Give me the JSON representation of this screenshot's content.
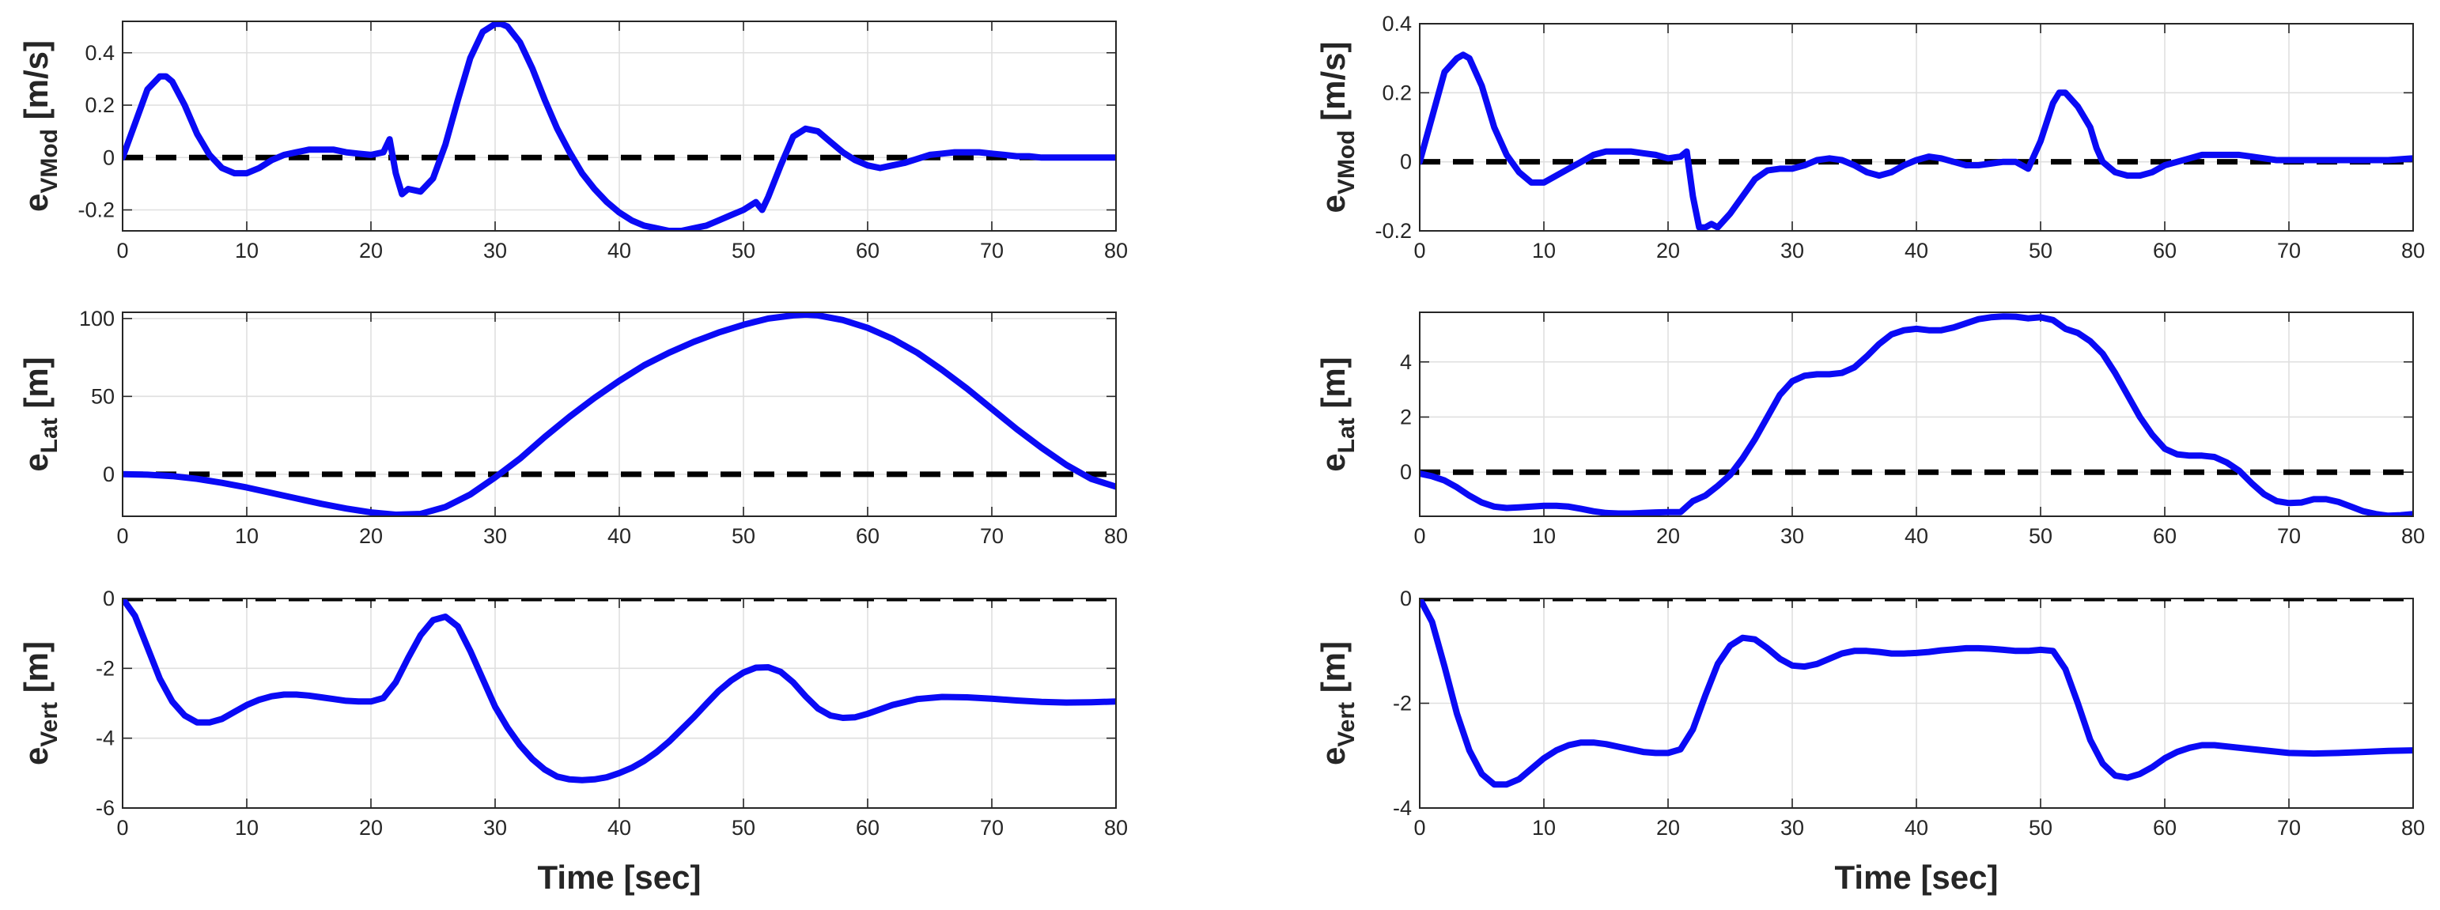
{
  "colors": {
    "series": "#0a0af5",
    "reference": "#000000",
    "grid": "#dfdfdf",
    "axis": "#262626"
  },
  "chart_data": [
    {
      "type": "line",
      "ylabel": {
        "base": "e",
        "sub": "VMod",
        "unit": "[m/s]"
      },
      "xlabel": "",
      "xlim": [
        0,
        80
      ],
      "ylim": [
        -0.28,
        0.52
      ],
      "xticks": [
        0,
        10,
        20,
        30,
        40,
        50,
        60,
        70,
        80
      ],
      "yticks": [
        -0.2,
        0,
        0.2,
        0.4
      ],
      "ytick_labels": [
        "-0.2",
        "0",
        "0.2",
        "0.4"
      ],
      "grid": true,
      "reference": 0,
      "series": [
        {
          "x": [
            0,
            1,
            2,
            3,
            3.5,
            4,
            5,
            6,
            7,
            8,
            9,
            10,
            11,
            12,
            13,
            14,
            15,
            16,
            17,
            18,
            19,
            20,
            21,
            21.5,
            22,
            22.5,
            23,
            24,
            25,
            26,
            27,
            28,
            29,
            30,
            30.5,
            31,
            32,
            33,
            34,
            35,
            36,
            37,
            38,
            39,
            40,
            41,
            42,
            43,
            44,
            45,
            46,
            47,
            48,
            49,
            50,
            51,
            51.5,
            52,
            53,
            54,
            55,
            56,
            57,
            58,
            59,
            60,
            61,
            62,
            63,
            64,
            65,
            66,
            67,
            68,
            69,
            70,
            71,
            72,
            73,
            74,
            75,
            76,
            77,
            78,
            79,
            80
          ],
          "y": [
            0,
            0.13,
            0.26,
            0.31,
            0.31,
            0.29,
            0.2,
            0.09,
            0.01,
            -0.04,
            -0.06,
            -0.06,
            -0.04,
            -0.01,
            0.01,
            0.02,
            0.03,
            0.03,
            0.03,
            0.02,
            0.015,
            0.01,
            0.02,
            0.07,
            -0.06,
            -0.14,
            -0.12,
            -0.13,
            -0.08,
            0.05,
            0.22,
            0.38,
            0.48,
            0.51,
            0.51,
            0.5,
            0.44,
            0.34,
            0.22,
            0.11,
            0.02,
            -0.06,
            -0.12,
            -0.17,
            -0.21,
            -0.24,
            -0.26,
            -0.27,
            -0.28,
            -0.28,
            -0.27,
            -0.26,
            -0.24,
            -0.22,
            -0.2,
            -0.17,
            -0.2,
            -0.15,
            -0.03,
            0.08,
            0.11,
            0.1,
            0.06,
            0.02,
            -0.01,
            -0.03,
            -0.04,
            -0.03,
            -0.02,
            -0.005,
            0.01,
            0.015,
            0.02,
            0.02,
            0.02,
            0.015,
            0.01,
            0.005,
            0.005,
            0,
            0,
            0,
            0,
            0,
            0,
            0
          ]
        }
      ]
    },
    {
      "type": "line",
      "ylabel": {
        "base": "e",
        "sub": "Lat",
        "unit": "[m]"
      },
      "xlabel": "",
      "xlim": [
        0,
        80
      ],
      "ylim": [
        -27,
        104
      ],
      "xticks": [
        0,
        10,
        20,
        30,
        40,
        50,
        60,
        70,
        80
      ],
      "yticks": [
        0,
        50,
        100
      ],
      "ytick_labels": [
        "0",
        "50",
        "100"
      ],
      "grid": true,
      "reference": 0,
      "series": [
        {
          "x": [
            0,
            2,
            4,
            6,
            8,
            10,
            12,
            14,
            16,
            18,
            20,
            22,
            24,
            26,
            28,
            30,
            32,
            34,
            36,
            38,
            40,
            42,
            44,
            46,
            48,
            50,
            52,
            54,
            55,
            56,
            58,
            60,
            62,
            64,
            66,
            68,
            70,
            72,
            74,
            76,
            78,
            80
          ],
          "y": [
            0,
            -0.3,
            -1.2,
            -3,
            -5.5,
            -8.5,
            -12,
            -15.5,
            -19,
            -22,
            -24.5,
            -26,
            -25.5,
            -21,
            -13,
            -2,
            10,
            24,
            37,
            49,
            60,
            70,
            78,
            85,
            91,
            96,
            100,
            102,
            102.5,
            102,
            99,
            94,
            87,
            78,
            67,
            55,
            42,
            29,
            17,
            6,
            -3,
            -8
          ]
        }
      ]
    },
    {
      "type": "line",
      "ylabel": {
        "base": "e",
        "sub": "Vert",
        "unit": "[m]"
      },
      "xlabel": "Time [sec]",
      "xlim": [
        0,
        80
      ],
      "ylim": [
        -6,
        0
      ],
      "xticks": [
        0,
        10,
        20,
        30,
        40,
        50,
        60,
        70,
        80
      ],
      "yticks": [
        -6,
        -4,
        -2,
        0
      ],
      "ytick_labels": [
        "-6",
        "-4",
        "-2",
        "0"
      ],
      "grid": true,
      "reference": 0,
      "series": [
        {
          "x": [
            0,
            1,
            2,
            3,
            4,
            5,
            6,
            7,
            8,
            9,
            10,
            11,
            12,
            13,
            14,
            15,
            16,
            17,
            18,
            19,
            20,
            21,
            22,
            23,
            24,
            25,
            26,
            27,
            28,
            29,
            30,
            31,
            32,
            33,
            34,
            35,
            36,
            37,
            38,
            39,
            40,
            41,
            42,
            43,
            44,
            45,
            46,
            47,
            48,
            49,
            50,
            51,
            52,
            53,
            54,
            55,
            56,
            57,
            58,
            59,
            60,
            62,
            64,
            66,
            68,
            70,
            72,
            74,
            76,
            78,
            80
          ],
          "y": [
            0,
            -0.5,
            -1.4,
            -2.3,
            -2.95,
            -3.35,
            -3.55,
            -3.55,
            -3.45,
            -3.25,
            -3.05,
            -2.9,
            -2.8,
            -2.75,
            -2.75,
            -2.78,
            -2.83,
            -2.88,
            -2.93,
            -2.95,
            -2.95,
            -2.85,
            -2.4,
            -1.7,
            -1.05,
            -0.62,
            -0.52,
            -0.8,
            -1.5,
            -2.3,
            -3.1,
            -3.7,
            -4.2,
            -4.6,
            -4.9,
            -5.1,
            -5.18,
            -5.2,
            -5.18,
            -5.12,
            -5,
            -4.85,
            -4.65,
            -4.4,
            -4.1,
            -3.75,
            -3.4,
            -3.02,
            -2.65,
            -2.35,
            -2.12,
            -1.98,
            -1.97,
            -2.1,
            -2.4,
            -2.8,
            -3.15,
            -3.35,
            -3.42,
            -3.4,
            -3.3,
            -3.05,
            -2.88,
            -2.82,
            -2.83,
            -2.87,
            -2.92,
            -2.96,
            -2.98,
            -2.97,
            -2.95
          ]
        }
      ]
    },
    {
      "type": "line",
      "ylabel": {
        "base": "e",
        "sub": "VMod",
        "unit": "[m/s]"
      },
      "xlabel": "",
      "xlim": [
        0,
        80
      ],
      "ylim": [
        -0.2,
        0.4
      ],
      "xticks": [
        0,
        10,
        20,
        30,
        40,
        50,
        60,
        70,
        80
      ],
      "yticks": [
        -0.2,
        0,
        0.2,
        0.4
      ],
      "ytick_labels": [
        "-0.2",
        "0",
        "0.2",
        "0.4"
      ],
      "grid": true,
      "reference": 0,
      "series": [
        {
          "x": [
            0,
            1,
            2,
            3,
            3.5,
            4,
            5,
            6,
            7,
            8,
            9,
            10,
            11,
            12,
            13,
            14,
            15,
            16,
            17,
            18,
            19,
            20,
            21,
            21.5,
            22,
            22.5,
            23,
            23.5,
            24,
            25,
            26,
            27,
            28,
            29,
            30,
            31,
            32,
            33,
            34,
            35,
            36,
            37,
            38,
            39,
            40,
            41,
            42,
            43,
            44,
            45,
            46,
            47,
            48,
            49,
            50,
            51,
            51.5,
            52,
            53,
            54,
            54.5,
            55,
            56,
            57,
            58,
            59,
            60,
            61,
            62,
            63,
            64,
            65,
            66,
            67,
            68,
            69,
            70,
            72,
            74,
            76,
            78,
            80
          ],
          "y": [
            0,
            0.13,
            0.26,
            0.3,
            0.31,
            0.3,
            0.22,
            0.1,
            0.02,
            -0.03,
            -0.06,
            -0.06,
            -0.04,
            -0.02,
            0,
            0.02,
            0.03,
            0.03,
            0.03,
            0.025,
            0.02,
            0.01,
            0.015,
            0.03,
            -0.1,
            -0.19,
            -0.19,
            -0.18,
            -0.19,
            -0.15,
            -0.1,
            -0.05,
            -0.025,
            -0.02,
            -0.02,
            -0.01,
            0.005,
            0.01,
            0.005,
            -0.01,
            -0.03,
            -0.04,
            -0.03,
            -0.01,
            0.005,
            0.015,
            0.01,
            0,
            -0.01,
            -0.01,
            -0.005,
            0,
            0,
            -0.02,
            0.06,
            0.17,
            0.2,
            0.2,
            0.16,
            0.1,
            0.04,
            0,
            -0.03,
            -0.04,
            -0.04,
            -0.03,
            -0.01,
            0,
            0.01,
            0.02,
            0.02,
            0.02,
            0.02,
            0.015,
            0.01,
            0.005,
            0.005,
            0.005,
            0.005,
            0.005,
            0.005,
            0.01
          ]
        }
      ]
    },
    {
      "type": "line",
      "ylabel": {
        "base": "e",
        "sub": "Lat",
        "unit": "[m]"
      },
      "xlabel": "",
      "xlim": [
        0,
        80
      ],
      "ylim": [
        -1.6,
        5.8
      ],
      "xticks": [
        0,
        10,
        20,
        30,
        40,
        50,
        60,
        70,
        80
      ],
      "yticks": [
        0,
        2,
        4
      ],
      "ytick_labels": [
        "0",
        "2",
        "4"
      ],
      "grid": true,
      "reference": 0,
      "series": [
        {
          "x": [
            0,
            1,
            2,
            3,
            4,
            5,
            6,
            7,
            8,
            9,
            10,
            11,
            12,
            13,
            14,
            15,
            16,
            17,
            18,
            19,
            20,
            21,
            22,
            23,
            24,
            25,
            26,
            27,
            28,
            29,
            30,
            31,
            32,
            33,
            34,
            35,
            36,
            37,
            38,
            39,
            40,
            41,
            42,
            43,
            44,
            45,
            46,
            47,
            48,
            49,
            50,
            51,
            52,
            53,
            54,
            55,
            56,
            57,
            58,
            59,
            60,
            61,
            62,
            63,
            64,
            65,
            66,
            67,
            68,
            69,
            70,
            71,
            72,
            73,
            74,
            75,
            76,
            77,
            78,
            79,
            80
          ],
          "y": [
            -0.05,
            -0.15,
            -0.3,
            -0.55,
            -0.85,
            -1.1,
            -1.25,
            -1.3,
            -1.28,
            -1.25,
            -1.22,
            -1.22,
            -1.25,
            -1.33,
            -1.42,
            -1.48,
            -1.5,
            -1.5,
            -1.48,
            -1.46,
            -1.45,
            -1.45,
            -1.05,
            -0.85,
            -0.5,
            -0.1,
            0.5,
            1.2,
            2,
            2.8,
            3.3,
            3.5,
            3.55,
            3.55,
            3.6,
            3.8,
            4.2,
            4.65,
            5,
            5.15,
            5.2,
            5.15,
            5.15,
            5.25,
            5.4,
            5.55,
            5.62,
            5.65,
            5.64,
            5.58,
            5.62,
            5.52,
            5.2,
            5.05,
            4.75,
            4.3,
            3.6,
            2.8,
            2,
            1.35,
            0.85,
            0.65,
            0.6,
            0.6,
            0.55,
            0.35,
            0.05,
            -0.4,
            -0.8,
            -1.05,
            -1.12,
            -1.1,
            -0.98,
            -0.98,
            -1.08,
            -1.25,
            -1.42,
            -1.52,
            -1.58,
            -1.56,
            -1.52
          ]
        }
      ]
    },
    {
      "type": "line",
      "ylabel": {
        "base": "e",
        "sub": "Vert",
        "unit": "[m]"
      },
      "xlabel": "Time [sec]",
      "xlim": [
        0,
        80
      ],
      "ylim": [
        -4,
        0
      ],
      "xticks": [
        0,
        10,
        20,
        30,
        40,
        50,
        60,
        70,
        80
      ],
      "yticks": [
        -4,
        -2,
        0
      ],
      "ytick_labels": [
        "-4",
        "-2",
        "0"
      ],
      "grid": true,
      "reference": 0,
      "series": [
        {
          "x": [
            0,
            1,
            2,
            3,
            4,
            5,
            6,
            7,
            8,
            9,
            10,
            11,
            12,
            13,
            14,
            15,
            16,
            17,
            18,
            19,
            20,
            21,
            22,
            23,
            24,
            25,
            26,
            27,
            28,
            29,
            30,
            31,
            32,
            33,
            34,
            35,
            36,
            37,
            38,
            39,
            40,
            41,
            42,
            43,
            44,
            45,
            46,
            47,
            48,
            49,
            50,
            51,
            52,
            53,
            54,
            55,
            56,
            57,
            58,
            59,
            60,
            61,
            62,
            63,
            64,
            66,
            68,
            70,
            72,
            74,
            76,
            78,
            80
          ],
          "y": [
            0,
            -0.45,
            -1.3,
            -2.2,
            -2.9,
            -3.35,
            -3.55,
            -3.55,
            -3.45,
            -3.25,
            -3.05,
            -2.9,
            -2.8,
            -2.75,
            -2.75,
            -2.78,
            -2.83,
            -2.88,
            -2.93,
            -2.95,
            -2.95,
            -2.88,
            -2.5,
            -1.85,
            -1.25,
            -0.9,
            -0.75,
            -0.78,
            -0.95,
            -1.15,
            -1.28,
            -1.3,
            -1.25,
            -1.15,
            -1.05,
            -1.0,
            -1.0,
            -1.02,
            -1.05,
            -1.05,
            -1.04,
            -1.02,
            -0.99,
            -0.97,
            -0.95,
            -0.95,
            -0.96,
            -0.98,
            -1.0,
            -1.0,
            -0.98,
            -1.0,
            -1.35,
            -2.0,
            -2.7,
            -3.15,
            -3.38,
            -3.42,
            -3.35,
            -3.22,
            -3.05,
            -2.93,
            -2.85,
            -2.8,
            -2.8,
            -2.85,
            -2.9,
            -2.95,
            -2.96,
            -2.95,
            -2.93,
            -2.91,
            -2.9
          ]
        }
      ]
    }
  ]
}
